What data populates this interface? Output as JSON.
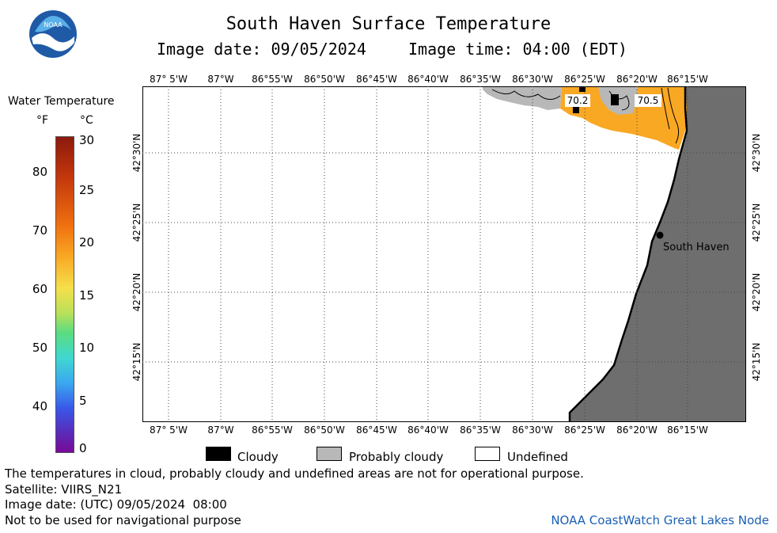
{
  "header": {
    "title": "South Haven Surface Temperature",
    "image_date": "Image date: 09/05/2024",
    "image_time": "Image time: 04:00 (EDT)"
  },
  "logo": {
    "text": "NOAA"
  },
  "legend": {
    "title": "Water Temperature",
    "unit_f": "°F",
    "unit_c": "°C",
    "f_ticks": [
      "80",
      "70",
      "60",
      "50",
      "40"
    ],
    "c_ticks": [
      "30",
      "25",
      "20",
      "15",
      "10",
      "5",
      "0"
    ],
    "colors": [
      "#8b1a0e",
      "#f07010",
      "#f9a824",
      "#f5e04a",
      "#5cdc80",
      "#40d8d0",
      "#3a58e8",
      "#7a0a98"
    ]
  },
  "map": {
    "lon_labels": [
      "87° 5'W",
      "87°W",
      "86°55'W",
      "86°50'W",
      "86°45'W",
      "86°40'W",
      "86°35'W",
      "86°30'W",
      "86°25'W",
      "86°20'W",
      "86°15'W"
    ],
    "lat_labels": [
      "42°30'N",
      "42°25'N",
      "42°20'N",
      "42°15'N"
    ],
    "temp_labels": [
      "70.2",
      "70.5"
    ],
    "city": "South Haven",
    "colors": {
      "land": "#6e6e6e",
      "water_warm": "#f9a824",
      "cloud": "#000000",
      "prob_cloud": "#b8b8b8",
      "undefined": "#ffffff"
    }
  },
  "map_legend": {
    "cloudy": "Cloudy",
    "probably_cloudy": "Probably cloudy",
    "undefined": "Undefined"
  },
  "footer": {
    "disclaimer": "The temperatures in cloud, probably cloudy and undefined areas are not for operational purpose.",
    "satellite": "Satellite: VIIRS_N21",
    "utc_date": "Image date: (UTC) 09/05/2024  08:00",
    "nav": "Not to be used for navigational purpose",
    "credit": "NOAA CoastWatch Great Lakes Node"
  }
}
